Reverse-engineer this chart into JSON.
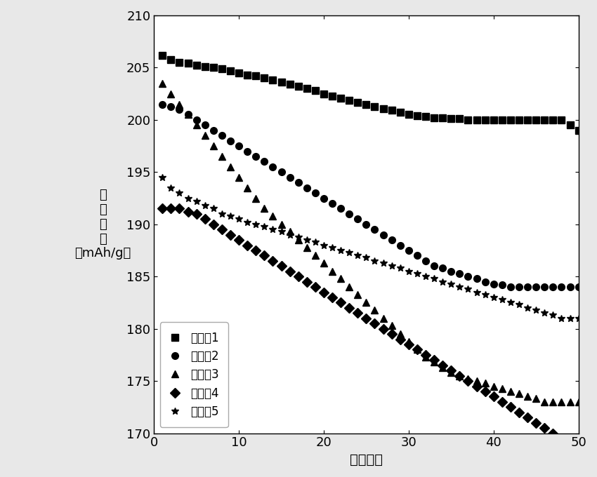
{
  "xlabel": "循环次数",
  "ylabel_parts": [
    "放电容量",
    "（mAh/g）"
  ],
  "xlim": [
    0,
    50
  ],
  "ylim": [
    170,
    210
  ],
  "yticks": [
    170,
    175,
    180,
    185,
    190,
    195,
    200,
    205,
    210
  ],
  "xticks": [
    0,
    10,
    20,
    30,
    40,
    50
  ],
  "series": [
    {
      "label": "实施例1",
      "marker": "s",
      "x": [
        1,
        2,
        3,
        4,
        5,
        6,
        7,
        8,
        9,
        10,
        11,
        12,
        13,
        14,
        15,
        16,
        17,
        18,
        19,
        20,
        21,
        22,
        23,
        24,
        25,
        26,
        27,
        28,
        29,
        30,
        31,
        32,
        33,
        34,
        35,
        36,
        37,
        38,
        39,
        40,
        41,
        42,
        43,
        44,
        45,
        46,
        47,
        48,
        49,
        50
      ],
      "y": [
        206.2,
        205.8,
        205.5,
        205.4,
        205.2,
        205.1,
        205.0,
        204.9,
        204.7,
        204.5,
        204.3,
        204.2,
        204.0,
        203.8,
        203.6,
        203.4,
        203.2,
        203.0,
        202.8,
        202.5,
        202.3,
        202.1,
        201.9,
        201.7,
        201.5,
        201.3,
        201.1,
        200.9,
        200.7,
        200.5,
        200.4,
        200.3,
        200.2,
        200.2,
        200.1,
        200.1,
        200.0,
        200.0,
        200.0,
        200.0,
        200.0,
        200.0,
        200.0,
        200.0,
        200.0,
        200.0,
        200.0,
        200.0,
        199.5,
        199.0
      ]
    },
    {
      "label": "对比例2",
      "marker": "o",
      "x": [
        1,
        2,
        3,
        4,
        5,
        6,
        7,
        8,
        9,
        10,
        11,
        12,
        13,
        14,
        15,
        16,
        17,
        18,
        19,
        20,
        21,
        22,
        23,
        24,
        25,
        26,
        27,
        28,
        29,
        30,
        31,
        32,
        33,
        34,
        35,
        36,
        37,
        38,
        39,
        40,
        41,
        42,
        43,
        44,
        45,
        46,
        47,
        48,
        49,
        50
      ],
      "y": [
        201.5,
        201.3,
        201.0,
        200.5,
        200.0,
        199.5,
        199.0,
        198.5,
        198.0,
        197.5,
        197.0,
        196.5,
        196.0,
        195.5,
        195.0,
        194.5,
        194.0,
        193.5,
        193.0,
        192.5,
        192.0,
        191.5,
        191.0,
        190.5,
        190.0,
        189.5,
        189.0,
        188.5,
        188.0,
        187.5,
        187.0,
        186.5,
        186.0,
        185.8,
        185.5,
        185.3,
        185.0,
        184.8,
        184.5,
        184.3,
        184.2,
        184.0,
        184.0,
        184.0,
        184.0,
        184.0,
        184.0,
        184.0,
        184.0,
        184.0
      ]
    },
    {
      "label": "对比例3",
      "marker": "^",
      "x": [
        1,
        2,
        3,
        4,
        5,
        6,
        7,
        8,
        9,
        10,
        11,
        12,
        13,
        14,
        15,
        16,
        17,
        18,
        19,
        20,
        21,
        22,
        23,
        24,
        25,
        26,
        27,
        28,
        29,
        30,
        31,
        32,
        33,
        34,
        35,
        36,
        37,
        38,
        39,
        40,
        41,
        42,
        43,
        44,
        45,
        46,
        47,
        48,
        49,
        50
      ],
      "y": [
        203.5,
        202.5,
        201.5,
        200.5,
        199.5,
        198.5,
        197.5,
        196.5,
        195.5,
        194.5,
        193.5,
        192.5,
        191.5,
        190.8,
        190.0,
        189.3,
        188.5,
        187.8,
        187.0,
        186.3,
        185.5,
        184.8,
        184.0,
        183.3,
        182.5,
        181.8,
        181.0,
        180.3,
        179.5,
        178.8,
        178.0,
        177.3,
        176.8,
        176.3,
        175.8,
        175.5,
        175.2,
        175.0,
        174.8,
        174.5,
        174.3,
        174.0,
        173.8,
        173.5,
        173.3,
        173.0,
        173.0,
        173.0,
        173.0,
        173.0
      ]
    },
    {
      "label": "对比例4",
      "marker": "D",
      "x": [
        1,
        2,
        3,
        4,
        5,
        6,
        7,
        8,
        9,
        10,
        11,
        12,
        13,
        14,
        15,
        16,
        17,
        18,
        19,
        20,
        21,
        22,
        23,
        24,
        25,
        26,
        27,
        28,
        29,
        30,
        31,
        32,
        33,
        34,
        35,
        36,
        37,
        38,
        39,
        40,
        41,
        42,
        43,
        44,
        45,
        46,
        47,
        48,
        49,
        50
      ],
      "y": [
        191.5,
        191.5,
        191.5,
        191.2,
        191.0,
        190.5,
        190.0,
        189.5,
        189.0,
        188.5,
        188.0,
        187.5,
        187.0,
        186.5,
        186.0,
        185.5,
        185.0,
        184.5,
        184.0,
        183.5,
        183.0,
        182.5,
        182.0,
        181.5,
        181.0,
        180.5,
        180.0,
        179.5,
        179.0,
        178.5,
        178.0,
        177.5,
        177.0,
        176.5,
        176.0,
        175.5,
        175.0,
        174.5,
        174.0,
        173.5,
        173.0,
        172.5,
        172.0,
        171.5,
        171.0,
        170.5,
        170.0,
        169.5,
        168.5,
        167.0
      ]
    },
    {
      "label": "对比例5",
      "marker": "*",
      "x": [
        1,
        2,
        3,
        4,
        5,
        6,
        7,
        8,
        9,
        10,
        11,
        12,
        13,
        14,
        15,
        16,
        17,
        18,
        19,
        20,
        21,
        22,
        23,
        24,
        25,
        26,
        27,
        28,
        29,
        30,
        31,
        32,
        33,
        34,
        35,
        36,
        37,
        38,
        39,
        40,
        41,
        42,
        43,
        44,
        45,
        46,
        47,
        48,
        49,
        50
      ],
      "y": [
        194.5,
        193.5,
        193.0,
        192.5,
        192.2,
        191.8,
        191.5,
        191.0,
        190.8,
        190.5,
        190.2,
        190.0,
        189.8,
        189.5,
        189.3,
        189.0,
        188.8,
        188.5,
        188.3,
        188.0,
        187.8,
        187.5,
        187.3,
        187.0,
        186.8,
        186.5,
        186.3,
        186.0,
        185.8,
        185.5,
        185.3,
        185.0,
        184.8,
        184.5,
        184.3,
        184.0,
        183.8,
        183.5,
        183.3,
        183.0,
        182.8,
        182.5,
        182.3,
        182.0,
        181.8,
        181.5,
        181.3,
        181.0,
        181.0,
        181.0
      ]
    }
  ],
  "legend_loc": "lower left",
  "background_color": "#ffffff",
  "marker_size": 7,
  "line_color": "black"
}
